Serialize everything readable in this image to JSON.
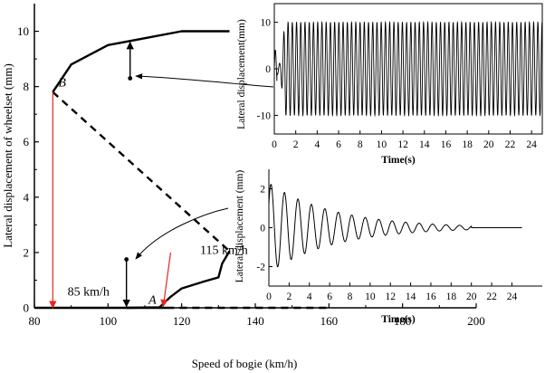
{
  "chart_data": [
    {
      "type": "line",
      "title": "",
      "xlabel": "Speed of bogie (km/h)",
      "ylabel": "Lateral displacement of wheelset (mm)",
      "xlim": [
        80,
        200
      ],
      "ylim": [
        0,
        11
      ],
      "xticks": [
        80,
        100,
        120,
        140,
        160,
        180,
        200
      ],
      "yticks": [
        0,
        2,
        4,
        6,
        8,
        10
      ],
      "series": [
        {
          "name": "stable_upper",
          "style": "solid",
          "x": [
            85,
            86,
            90,
            100,
            110,
            120,
            133
          ],
          "y": [
            7.8,
            8.0,
            8.8,
            9.5,
            9.75,
            10.0,
            10.0
          ]
        },
        {
          "name": "stable_lower",
          "style": "solid",
          "x": [
            105,
            114,
            117,
            120,
            126,
            130,
            131,
            133
          ],
          "y": [
            0.0,
            0.02,
            0.4,
            0.7,
            0.95,
            1.1,
            1.6,
            2.05
          ]
        },
        {
          "name": "zero_stable",
          "style": "solid",
          "x": [
            80,
            116
          ],
          "y": [
            0,
            0
          ]
        },
        {
          "name": "unstable_branch",
          "style": "dashed",
          "x": [
            85,
            133
          ],
          "y": [
            7.8,
            2.05
          ]
        },
        {
          "name": "zero_unstable",
          "style": "dashed",
          "x": [
            116,
            160
          ],
          "y": [
            0,
            0
          ]
        }
      ],
      "annotations": [
        {
          "label": "B",
          "x": 86.5,
          "y": 8.0,
          "italic": true
        },
        {
          "label": "A",
          "x": 111,
          "y": 0.15,
          "italic": true
        },
        {
          "label": "85 km/h",
          "x": 89,
          "y": 0.45
        },
        {
          "label": "115 km/h",
          "x": 125,
          "y": 1.95
        }
      ],
      "markers": [
        {
          "name": "red-arrow-85",
          "x": 85,
          "y_from": 7.8,
          "y_to": 0,
          "color": "#e8251f"
        },
        {
          "name": "red-arrow-115",
          "x_from": 117,
          "y_from": 2.0,
          "x_to": 115,
          "y_to": 0.05,
          "color": "#e8251f"
        },
        {
          "name": "black-arrow-up",
          "x": 106,
          "y_from": 8.3,
          "y_to": 9.6,
          "color": "#000000"
        },
        {
          "name": "black-arrow-down",
          "x": 105,
          "y_from": 1.7,
          "y_to": 0.05,
          "color": "#000000"
        },
        {
          "name": "dot-upper",
          "x": 106,
          "y": 8.3
        },
        {
          "name": "dot-lower",
          "x": 105,
          "y": 1.75
        }
      ]
    },
    {
      "type": "line",
      "title": "inset-upper",
      "xlabel": "Time(s)",
      "ylabel": "Lateral displacement(mm)",
      "xlim": [
        0,
        25
      ],
      "ylim": [
        -14,
        14
      ],
      "xticks": [
        0,
        2,
        4,
        6,
        8,
        10,
        12,
        14,
        16,
        18,
        20,
        22,
        24
      ],
      "yticks": [
        -10,
        0,
        10
      ],
      "signal": {
        "kind": "limit_cycle",
        "amplitude": 10,
        "period_s": 0.395,
        "transient_s": 1.0
      }
    },
    {
      "type": "line",
      "title": "inset-lower",
      "xlabel": "Time(s)",
      "ylabel": "Lateral displacement (mm)",
      "xlim": [
        0,
        27
      ],
      "ylim": [
        -3,
        3
      ],
      "xticks": [
        0,
        2,
        4,
        6,
        8,
        10,
        12,
        14,
        16,
        18,
        20,
        22,
        24
      ],
      "yticks": [
        -2,
        0,
        2
      ],
      "signal": {
        "kind": "decaying",
        "amplitude": 2.3,
        "decay_per_s": 0.155,
        "period_s": 1.33,
        "end_s": 20
      }
    }
  ],
  "colors": {
    "axis": "#000000",
    "red_arrow": "#e8251f"
  }
}
